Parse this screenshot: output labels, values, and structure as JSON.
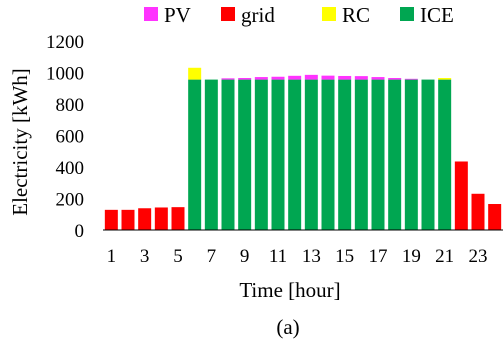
{
  "chart_data": {
    "type": "bar",
    "stacked": true,
    "categories": [
      "1",
      "2",
      "3",
      "4",
      "5",
      "6",
      "7",
      "8",
      "9",
      "10",
      "11",
      "12",
      "13",
      "14",
      "15",
      "16",
      "17",
      "18",
      "19",
      "20",
      "21",
      "22",
      "23",
      "24"
    ],
    "x_tick_labels": [
      "1",
      "",
      "3",
      "",
      "5",
      "",
      "7",
      "",
      "9",
      "",
      "11",
      "",
      "13",
      "",
      "15",
      "",
      "17",
      "",
      "19",
      "",
      "21",
      "",
      "23",
      ""
    ],
    "series": [
      {
        "name": "ICE",
        "color": "#00A651",
        "values": [
          0,
          0,
          0,
          0,
          0,
          955,
          955,
          955,
          955,
          955,
          955,
          955,
          955,
          955,
          955,
          955,
          955,
          955,
          955,
          955,
          955,
          0,
          0,
          0
        ]
      },
      {
        "name": "grid",
        "color": "#FF0000",
        "values": [
          128,
          128,
          138,
          143,
          145,
          0,
          0,
          0,
          0,
          0,
          0,
          0,
          0,
          0,
          0,
          0,
          0,
          0,
          0,
          0,
          0,
          435,
          230,
          165
        ]
      },
      {
        "name": "RC",
        "color": "#FFFF00",
        "values": [
          0,
          0,
          0,
          0,
          0,
          75,
          0,
          0,
          0,
          0,
          0,
          0,
          0,
          0,
          0,
          0,
          0,
          0,
          0,
          0,
          10,
          0,
          0,
          0
        ]
      },
      {
        "name": "PV",
        "color": "#FF33FF",
        "values": [
          0,
          0,
          0,
          0,
          0,
          0,
          0,
          8,
          10,
          16,
          18,
          24,
          30,
          25,
          23,
          22,
          16,
          10,
          5,
          0,
          0,
          0,
          0,
          0
        ]
      }
    ],
    "legend_order": [
      "PV",
      "grid",
      "RC",
      "ICE"
    ],
    "xlabel": "Time [hour]",
    "ylabel": "Electricity [kWh]",
    "ylim": [
      0,
      1200
    ],
    "yticks": [
      "0",
      "200",
      "400",
      "600",
      "800",
      "1000",
      "1200"
    ],
    "legend_position": "top",
    "grid": false
  },
  "caption": "(a)"
}
